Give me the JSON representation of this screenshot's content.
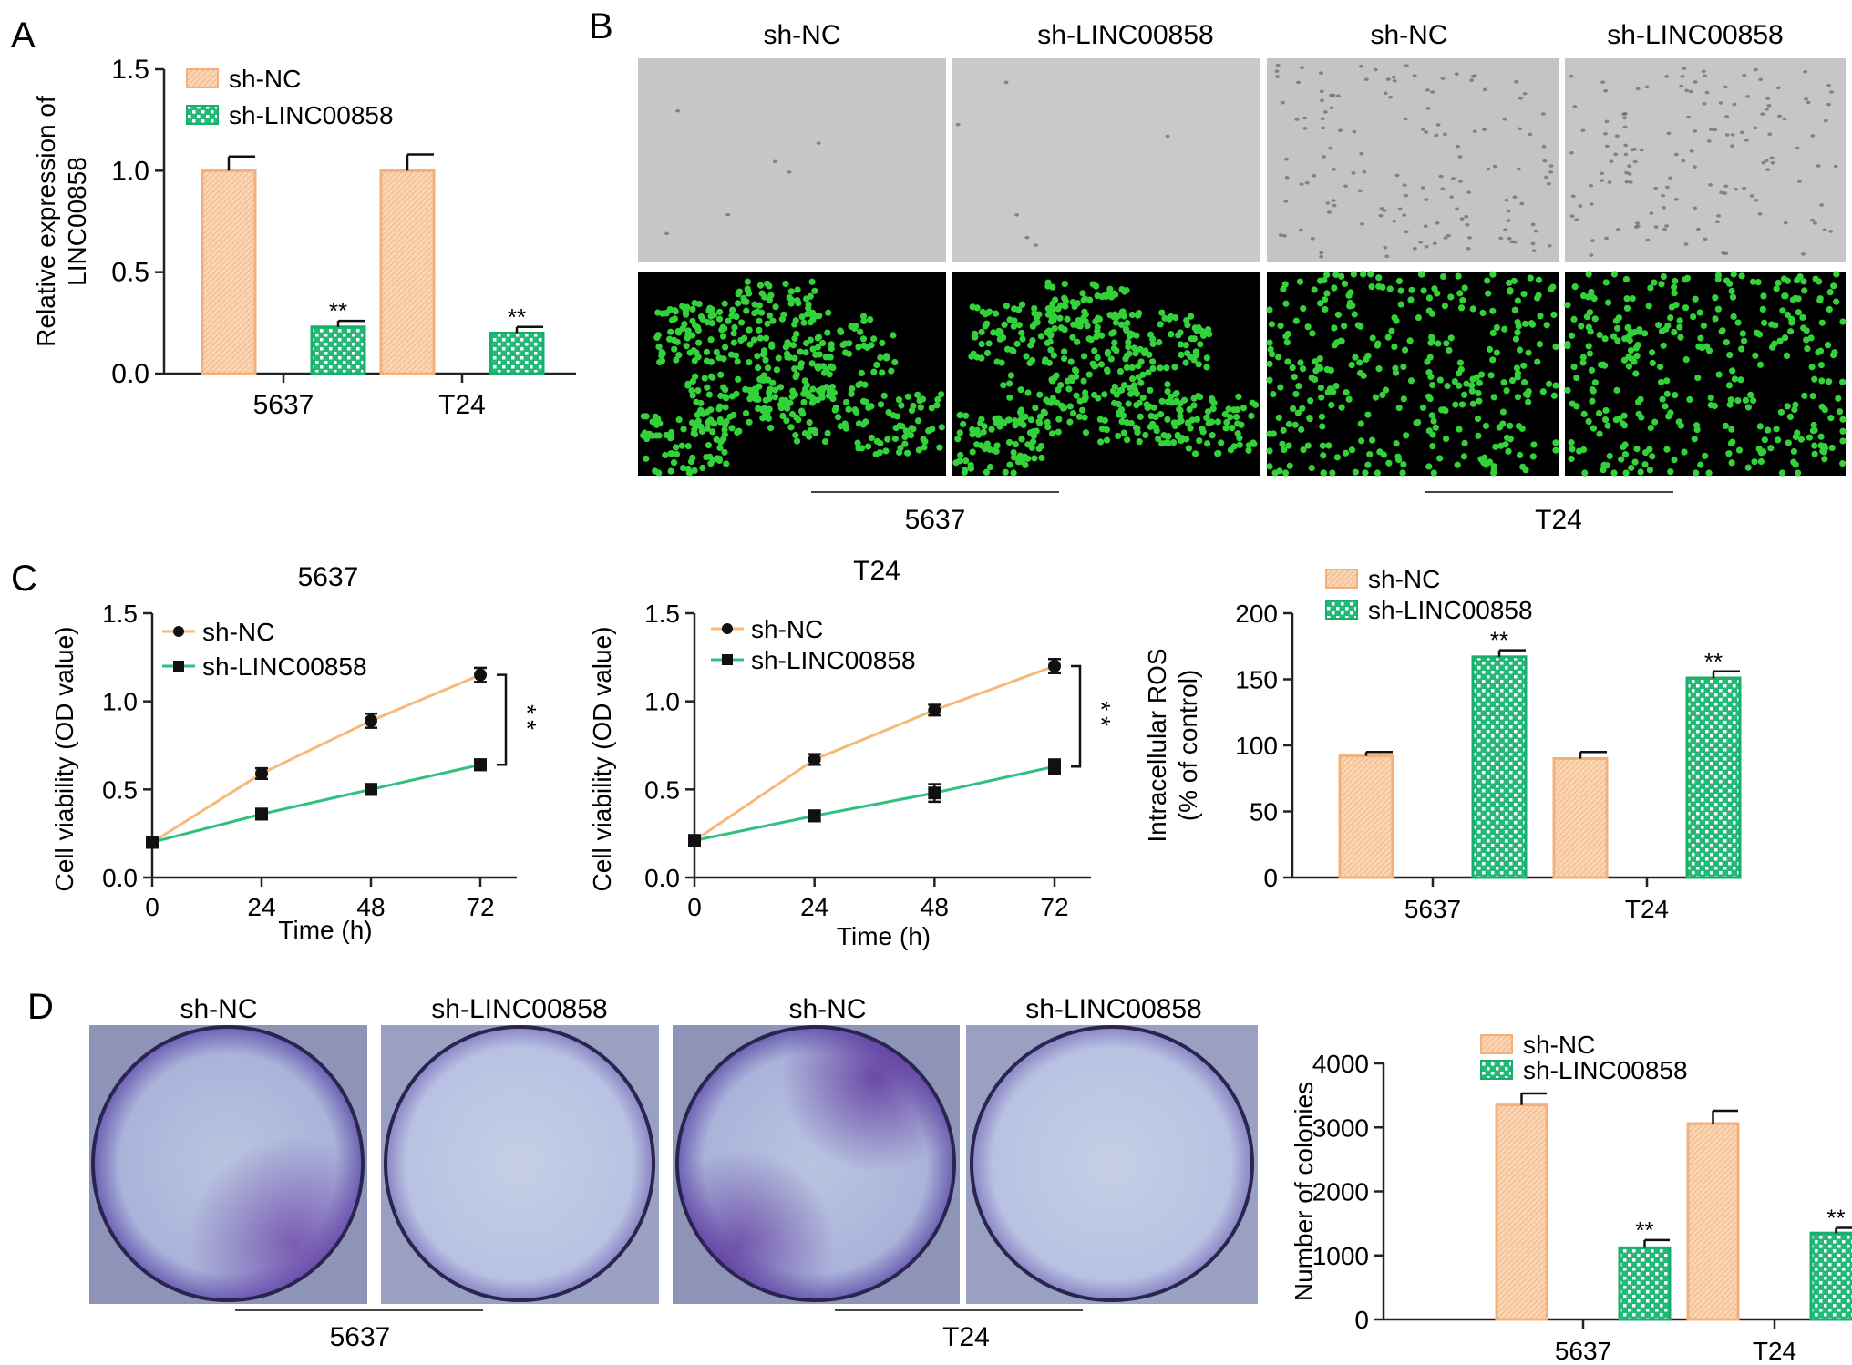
{
  "figure": {
    "panel_letters": [
      "A",
      "B",
      "C",
      "D"
    ],
    "colors": {
      "nc_fill": "#fbd5b0",
      "nc_stroke": "#f3b07a",
      "kd_fill": "#2fc181",
      "kd_stroke": "#16b068",
      "nc_line": "#f5b97a",
      "kd_line": "#2fbf7f",
      "axis": "#222222"
    }
  },
  "panelB": {
    "row_labels": [
      "sh-NC",
      "sh-LINC00858",
      "sh-NC",
      "sh-LINC00858"
    ],
    "group_labels": [
      "5637",
      "T24"
    ]
  },
  "panelD": {
    "row_labels": [
      "sh-NC",
      "sh-LINC00858",
      "sh-NC",
      "sh-LINC00858"
    ],
    "group_labels": [
      "5637",
      "T24"
    ]
  },
  "chart_data": [
    {
      "id": "A",
      "type": "bar",
      "title": "",
      "xlabel": "",
      "ylabel": "Relative expression of LINC00858",
      "ylim": [
        0,
        1.5
      ],
      "yticks": [
        "0.0",
        "0.5",
        "1.0",
        "1.5"
      ],
      "categories": [
        "5637",
        "T24"
      ],
      "legend_position": "top-left",
      "series": [
        {
          "name": "sh-NC",
          "values": [
            1.0,
            1.0
          ],
          "errors": [
            0.07,
            0.08
          ],
          "sig": [
            "",
            ""
          ]
        },
        {
          "name": "sh-LINC00858",
          "values": [
            0.23,
            0.2
          ],
          "errors": [
            0.03,
            0.03
          ],
          "sig": [
            "**",
            "**"
          ]
        }
      ]
    },
    {
      "id": "C1",
      "type": "line",
      "title": "5637",
      "xlabel": "Time (h)",
      "ylabel": "Cell viability (OD value)",
      "x": [
        0,
        24,
        48,
        72
      ],
      "xticks": [
        "0",
        "24",
        "48",
        "72"
      ],
      "ylim": [
        0,
        1.5
      ],
      "yticks": [
        "0.0",
        "0.5",
        "1.0",
        "1.5"
      ],
      "legend_position": "top-left",
      "significance": "**",
      "series": [
        {
          "name": "sh-NC",
          "values": [
            0.2,
            0.59,
            0.89,
            1.15
          ],
          "errors": [
            0.03,
            0.03,
            0.04,
            0.04
          ]
        },
        {
          "name": "sh-LINC00858",
          "values": [
            0.2,
            0.36,
            0.5,
            0.64
          ],
          "errors": [
            0.03,
            0.03,
            0.03,
            0.03
          ]
        }
      ]
    },
    {
      "id": "C2",
      "type": "line",
      "title": "T24",
      "xlabel": "Time (h)",
      "ylabel": "Cell viability (OD value)",
      "x": [
        0,
        24,
        48,
        72
      ],
      "xticks": [
        "0",
        "24",
        "48",
        "72"
      ],
      "ylim": [
        0,
        1.5
      ],
      "yticks": [
        "0.0",
        "0.5",
        "1.0",
        "1.5"
      ],
      "legend_position": "top-left",
      "significance": "**",
      "series": [
        {
          "name": "sh-NC",
          "values": [
            0.21,
            0.67,
            0.95,
            1.2
          ],
          "errors": [
            0.03,
            0.03,
            0.03,
            0.04
          ]
        },
        {
          "name": "sh-LINC00858",
          "values": [
            0.21,
            0.35,
            0.48,
            0.63
          ],
          "errors": [
            0.03,
            0.03,
            0.05,
            0.04
          ]
        }
      ]
    },
    {
      "id": "C3",
      "type": "bar",
      "title": "",
      "xlabel": "",
      "ylabel": "Intracellular ROS (% of control)",
      "ylim": [
        0,
        200
      ],
      "yticks": [
        "0",
        "50",
        "100",
        "150",
        "200"
      ],
      "categories": [
        "5637",
        "T24"
      ],
      "legend_position": "top-left",
      "series": [
        {
          "name": "sh-NC",
          "values": [
            92,
            90
          ],
          "errors": [
            3,
            5
          ],
          "sig": [
            "",
            ""
          ]
        },
        {
          "name": "sh-LINC00858",
          "values": [
            167,
            151
          ],
          "errors": [
            5,
            5
          ],
          "sig": [
            "**",
            "**"
          ]
        }
      ]
    },
    {
      "id": "D",
      "type": "bar",
      "title": "",
      "xlabel": "",
      "ylabel": "Number of colonies",
      "ylim": [
        0,
        4000
      ],
      "yticks": [
        "0",
        "1000",
        "2000",
        "3000",
        "4000"
      ],
      "categories": [
        "5637",
        "T24"
      ],
      "legend_position": "top-left",
      "series": [
        {
          "name": "sh-NC",
          "values": [
            3350,
            3060
          ],
          "errors": [
            180,
            200
          ],
          "sig": [
            "",
            ""
          ]
        },
        {
          "name": "sh-LINC00858",
          "values": [
            1120,
            1350
          ],
          "errors": [
            120,
            80
          ],
          "sig": [
            "**",
            "**"
          ]
        }
      ]
    }
  ]
}
